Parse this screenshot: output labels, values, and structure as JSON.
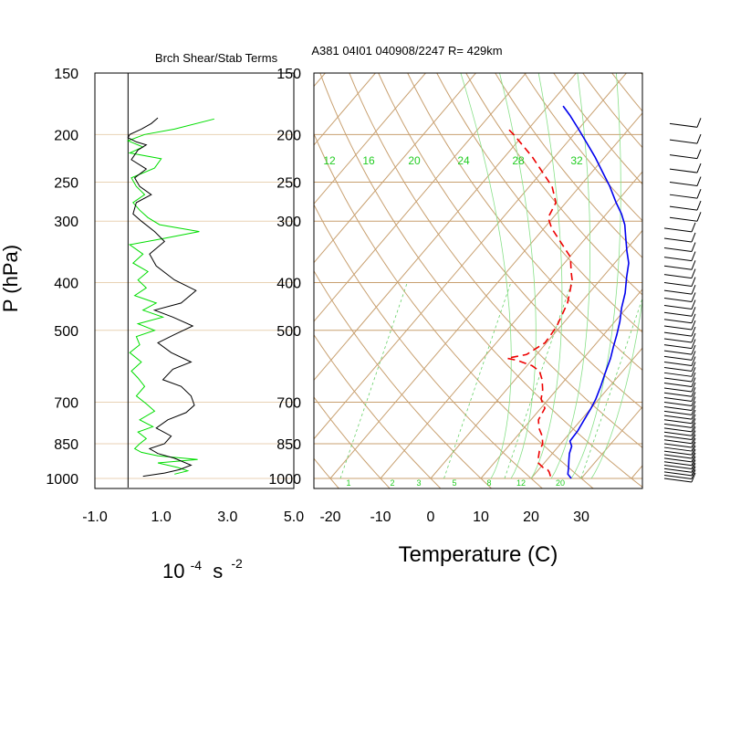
{
  "chart_data": [
    {
      "type": "line",
      "title": "Brch Shear/Stab Terms",
      "ylabel": "P (hPa)",
      "xlabel_base": "10",
      "xlabel_exp": "-4",
      "xlabel_unit": "s",
      "xlabel_unit_exp": "-2",
      "xlim": [
        -1.0,
        5.0
      ],
      "xticks": [
        "-1.0",
        "1.0",
        "3.0",
        "5.0"
      ],
      "xtick_values": [
        -1,
        1,
        3,
        5
      ],
      "yscale": "log",
      "ylim": [
        1000,
        150
      ],
      "yticks": [
        150,
        200,
        250,
        300,
        400,
        500,
        700,
        850,
        1000
      ],
      "highlight_bands": [
        [
          190,
          212
        ],
        [
          282,
          308
        ]
      ],
      "colors": {
        "line1": "#000000",
        "line2": "#00dd00",
        "band": "#ff44ff",
        "grid": "#e8d2b4"
      },
      "series": [
        {
          "key": "black",
          "points": [
            [
              0.9,
              185
            ],
            [
              0.7,
              190
            ],
            [
              0.4,
              195
            ],
            [
              0.05,
              200
            ],
            [
              0.0,
              203
            ],
            [
              0.25,
              207
            ],
            [
              0.55,
              210
            ],
            [
              0.3,
              215
            ],
            [
              0.1,
              225
            ],
            [
              0.55,
              235
            ],
            [
              0.2,
              245
            ],
            [
              0.35,
              255
            ],
            [
              0.7,
              265
            ],
            [
              0.25,
              275
            ],
            [
              0.15,
              290
            ],
            [
              0.4,
              300
            ],
            [
              0.8,
              315
            ],
            [
              1.1,
              330
            ],
            [
              0.65,
              350
            ],
            [
              0.85,
              370
            ],
            [
              1.4,
              395
            ],
            [
              2.05,
              415
            ],
            [
              1.6,
              440
            ],
            [
              0.8,
              455
            ],
            [
              1.35,
              470
            ],
            [
              1.95,
              490
            ],
            [
              1.4,
              510
            ],
            [
              0.9,
              530
            ],
            [
              1.3,
              555
            ],
            [
              1.9,
              580
            ],
            [
              1.35,
              600
            ],
            [
              1.05,
              630
            ],
            [
              1.6,
              650
            ],
            [
              1.9,
              680
            ],
            [
              2.0,
              710
            ],
            [
              1.75,
              735
            ],
            [
              1.2,
              760
            ],
            [
              0.85,
              790
            ],
            [
              1.3,
              820
            ],
            [
              1.1,
              850
            ],
            [
              0.65,
              870
            ],
            [
              0.9,
              890
            ],
            [
              1.4,
              910
            ],
            [
              1.9,
              940
            ],
            [
              1.55,
              960
            ],
            [
              1.1,
              975
            ],
            [
              0.45,
              990
            ]
          ]
        },
        {
          "key": "green",
          "points": [
            [
              2.6,
              186
            ],
            [
              1.4,
              195
            ],
            [
              0.5,
              200
            ],
            [
              0.0,
              206
            ],
            [
              0.45,
              212
            ],
            [
              0.05,
              218
            ],
            [
              1.0,
              224
            ],
            [
              0.8,
              234
            ],
            [
              0.1,
              245
            ],
            [
              0.25,
              255
            ],
            [
              0.5,
              265
            ],
            [
              0.15,
              275
            ],
            [
              0.35,
              285
            ],
            [
              0.6,
              295
            ],
            [
              0.95,
              305
            ],
            [
              2.15,
              315
            ],
            [
              1.1,
              325
            ],
            [
              0.05,
              335
            ],
            [
              0.45,
              350
            ],
            [
              0.15,
              365
            ],
            [
              0.6,
              380
            ],
            [
              0.3,
              395
            ],
            [
              0.55,
              410
            ],
            [
              0.2,
              425
            ],
            [
              0.85,
              440
            ],
            [
              0.45,
              455
            ],
            [
              1.05,
              470
            ],
            [
              0.3,
              485
            ],
            [
              0.8,
              500
            ],
            [
              0.25,
              515
            ],
            [
              0.35,
              535
            ],
            [
              0.05,
              555
            ],
            [
              0.4,
              580
            ],
            [
              0.1,
              605
            ],
            [
              0.3,
              625
            ],
            [
              0.5,
              650
            ],
            [
              0.25,
              680
            ],
            [
              0.55,
              705
            ],
            [
              0.8,
              730
            ],
            [
              0.35,
              760
            ],
            [
              0.75,
              785
            ],
            [
              0.3,
              805
            ],
            [
              0.55,
              830
            ],
            [
              0.35,
              850
            ],
            [
              0.2,
              870
            ],
            [
              0.4,
              885
            ],
            [
              0.9,
              900
            ],
            [
              2.1,
              915
            ],
            [
              0.9,
              930
            ],
            [
              1.5,
              950
            ],
            [
              1.8,
              965
            ],
            [
              1.4,
              980
            ]
          ]
        }
      ]
    },
    {
      "type": "line",
      "title": "A381 04I01 040908/2247 R= 429km",
      "xlabel": "Temperature (C)",
      "xticks": [
        "-20",
        "-10",
        "0",
        "10",
        "20",
        "30"
      ],
      "xtick_values": [
        -20,
        -10,
        0,
        10,
        20,
        30
      ],
      "skew_projection": "skew-T log-p",
      "yscale": "log",
      "ylim": [
        1000,
        150
      ],
      "yticks": [
        150,
        200,
        250,
        300,
        400,
        500,
        700,
        850,
        1000
      ],
      "highlight_bands": [
        [
          190,
          212
        ],
        [
          282,
          308
        ]
      ],
      "mixing_ratio_labels": [
        "12",
        "16",
        "20",
        "24",
        "28",
        "32"
      ],
      "mixing_ratio_labels_low": [
        "1",
        "2",
        "3",
        "5",
        "8",
        "12",
        "20"
      ],
      "colors": {
        "temperature": "#0000ee",
        "dewpoint": "#ee0000",
        "isotherm": "#c8a070",
        "mixing_ratio": "#33cc33",
        "band": "#ff44ff"
      },
      "series": [
        {
          "key": "temperature",
          "points": [
            [
              28.0,
              1000
            ],
            [
              26.6,
              980
            ],
            [
              25.6,
              950
            ],
            [
              24.5,
              920
            ],
            [
              23.4,
              890
            ],
            [
              22.6,
              860
            ],
            [
              21.4,
              840
            ],
            [
              21.2,
              800
            ],
            [
              20.6,
              760
            ],
            [
              20.0,
              720
            ],
            [
              19.4,
              690
            ],
            [
              18.2,
              650
            ],
            [
              16.8,
              610
            ],
            [
              15.4,
              570
            ],
            [
              14.0,
              540
            ],
            [
              12.6,
              510
            ],
            [
              11.0,
              480
            ],
            [
              9.0,
              450
            ],
            [
              7.2,
              420
            ],
            [
              4.8,
              390
            ],
            [
              2.8,
              365
            ],
            [
              0.4,
              345
            ],
            [
              -2.0,
              325
            ],
            [
              -4.5,
              305
            ],
            [
              -7.0,
              290
            ],
            [
              -10.0,
              275
            ],
            [
              -14.0,
              255
            ],
            [
              -18.0,
              238
            ],
            [
              -22.0,
              222
            ],
            [
              -26.0,
              208
            ],
            [
              -30.0,
              195
            ],
            [
              -34.0,
              183
            ],
            [
              -37.0,
              175
            ]
          ]
        },
        {
          "key": "dewpoint",
          "points": [
            [
              23.5,
              990
            ],
            [
              22.5,
              970
            ],
            [
              21.8,
              960
            ],
            [
              20.5,
              950
            ],
            [
              18.8,
              930
            ],
            [
              18.0,
              910
            ],
            [
              17.0,
              880
            ],
            [
              16.4,
              850
            ],
            [
              15.0,
              820
            ],
            [
              13.0,
              790
            ],
            [
              11.5,
              760
            ],
            [
              10.8,
              720
            ],
            [
              8.5,
              690
            ],
            [
              7.2,
              660
            ],
            [
              5.4,
              630
            ],
            [
              3.4,
              605
            ],
            [
              1.0,
              590
            ],
            [
              -3.0,
              575
            ],
            [
              -5.2,
              570
            ],
            [
              -2.0,
              560
            ],
            [
              -0.3,
              530
            ],
            [
              -0.5,
              510
            ],
            [
              -0.8,
              490
            ],
            [
              -1.5,
              470
            ],
            [
              -2.6,
              440
            ],
            [
              -4.2,
              415
            ],
            [
              -5.6,
              395
            ],
            [
              -7.2,
              380
            ],
            [
              -9.8,
              355
            ],
            [
              -14.5,
              330
            ],
            [
              -18.5,
              310
            ],
            [
              -21.0,
              295
            ],
            [
              -22.0,
              275
            ],
            [
              -25.5,
              255
            ],
            [
              -30.0,
              238
            ],
            [
              -34.5,
              222
            ],
            [
              -38.5,
              210
            ],
            [
              -42.0,
              200
            ],
            [
              -44.0,
              195
            ]
          ]
        }
      ]
    }
  ]
}
